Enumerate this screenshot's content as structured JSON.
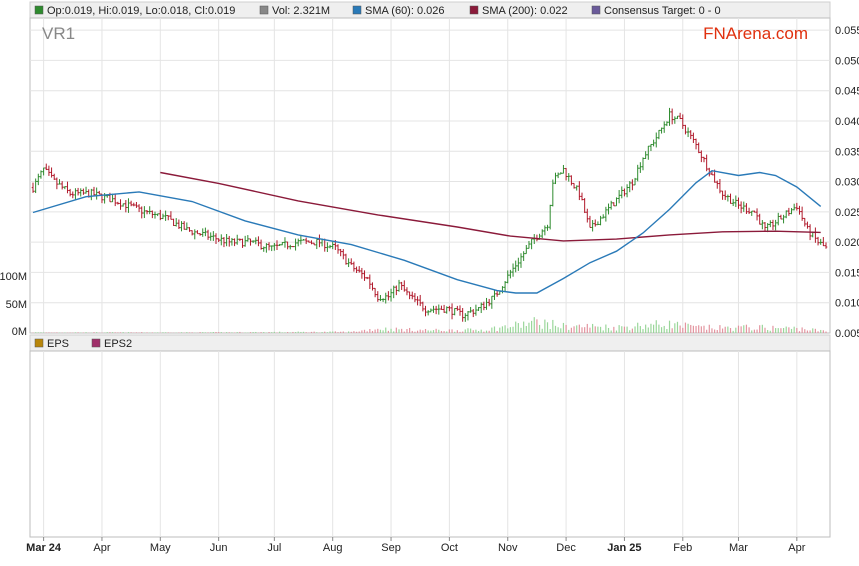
{
  "header": {
    "legend": [
      {
        "label": "Op:0.019, Hi:0.019, Lo:0.018, Cl:0.019",
        "color": "#2e8b2e"
      },
      {
        "label": "Vol: 2.321M",
        "color": "#888888"
      },
      {
        "label": "SMA (60): 0.026",
        "color": "#2a7ab8"
      },
      {
        "label": "SMA (200): 0.022",
        "color": "#8b1a3a"
      },
      {
        "label": "Consensus Target: 0 - 0",
        "color": "#6a5a9a"
      }
    ]
  },
  "ticker": "VR1",
  "brand": {
    "name": "FNArena.com",
    "color": "#e0300e"
  },
  "eps_legend": [
    {
      "label": "EPS",
      "color": "#b8860b"
    },
    {
      "label": "EPS2",
      "color": "#a0306a"
    }
  ],
  "colors": {
    "up": "#2e8b2e",
    "down": "#b0182a",
    "sma60": "#2a7ab8",
    "sma200": "#8b1a3a"
  },
  "chart_data": {
    "type": "candlestick",
    "y_price_ticks": [
      "0.055",
      "0.050",
      "0.045",
      "0.040",
      "0.035",
      "0.030",
      "0.025",
      "0.020",
      "0.015",
      "0.010",
      "0.005"
    ],
    "y_volume_ticks": [
      "100M",
      "50M",
      "0M"
    ],
    "x_ticks": [
      "Mar 24",
      "Apr",
      "May",
      "Jun",
      "Jul",
      "Aug",
      "Sep",
      "Oct",
      "Nov",
      "Dec",
      "Jan 25",
      "Feb",
      "Mar",
      "Apr"
    ],
    "x_tick_index": [
      4,
      26,
      48,
      70,
      91,
      113,
      135,
      157,
      179,
      201,
      223,
      245,
      266,
      288
    ],
    "ylim": [
      0.005,
      0.057
    ],
    "candle_count": 300,
    "price_path": [
      [
        0,
        0.029
      ],
      [
        4,
        0.032
      ],
      [
        8,
        0.03
      ],
      [
        14,
        0.028
      ],
      [
        22,
        0.028
      ],
      [
        30,
        0.027
      ],
      [
        36,
        0.026
      ],
      [
        42,
        0.025
      ],
      [
        50,
        0.024
      ],
      [
        58,
        0.022
      ],
      [
        66,
        0.021
      ],
      [
        74,
        0.02
      ],
      [
        82,
        0.02
      ],
      [
        90,
        0.019
      ],
      [
        100,
        0.02
      ],
      [
        108,
        0.02
      ],
      [
        114,
        0.019
      ],
      [
        120,
        0.016
      ],
      [
        126,
        0.014
      ],
      [
        130,
        0.011
      ],
      [
        134,
        0.011
      ],
      [
        138,
        0.013
      ],
      [
        142,
        0.011
      ],
      [
        148,
        0.009
      ],
      [
        156,
        0.009
      ],
      [
        162,
        0.008
      ],
      [
        168,
        0.009
      ],
      [
        174,
        0.011
      ],
      [
        180,
        0.015
      ],
      [
        188,
        0.02
      ],
      [
        194,
        0.023
      ],
      [
        196,
        0.03
      ],
      [
        200,
        0.032
      ],
      [
        206,
        0.028
      ],
      [
        210,
        0.022
      ],
      [
        214,
        0.024
      ],
      [
        220,
        0.027
      ],
      [
        226,
        0.03
      ],
      [
        230,
        0.034
      ],
      [
        236,
        0.038
      ],
      [
        240,
        0.041
      ],
      [
        244,
        0.04
      ],
      [
        250,
        0.036
      ],
      [
        256,
        0.031
      ],
      [
        260,
        0.028
      ],
      [
        266,
        0.026
      ],
      [
        272,
        0.025
      ],
      [
        276,
        0.022
      ],
      [
        282,
        0.024
      ],
      [
        288,
        0.026
      ],
      [
        292,
        0.022
      ],
      [
        296,
        0.02
      ],
      [
        299,
        0.019
      ]
    ],
    "volume_path": [
      [
        0,
        1
      ],
      [
        60,
        1
      ],
      [
        120,
        2
      ],
      [
        130,
        8
      ],
      [
        140,
        6
      ],
      [
        150,
        5
      ],
      [
        160,
        5
      ],
      [
        170,
        6
      ],
      [
        180,
        12
      ],
      [
        190,
        20
      ],
      [
        200,
        12
      ],
      [
        210,
        12
      ],
      [
        220,
        10
      ],
      [
        230,
        14
      ],
      [
        240,
        16
      ],
      [
        250,
        10
      ],
      [
        260,
        9
      ],
      [
        270,
        10
      ],
      [
        280,
        9
      ],
      [
        290,
        8
      ],
      [
        299,
        3
      ]
    ],
    "sma60_path": [
      [
        0,
        0.0249
      ],
      [
        20,
        0.0275
      ],
      [
        40,
        0.0283
      ],
      [
        60,
        0.0267
      ],
      [
        80,
        0.0235
      ],
      [
        100,
        0.0212
      ],
      [
        120,
        0.0196
      ],
      [
        140,
        0.017
      ],
      [
        160,
        0.0138
      ],
      [
        175,
        0.012
      ],
      [
        182,
        0.0116
      ],
      [
        190,
        0.0116
      ],
      [
        200,
        0.014
      ],
      [
        210,
        0.0166
      ],
      [
        220,
        0.0185
      ],
      [
        230,
        0.0215
      ],
      [
        240,
        0.0254
      ],
      [
        250,
        0.0298
      ],
      [
        256,
        0.0318
      ],
      [
        266,
        0.031
      ],
      [
        274,
        0.0315
      ],
      [
        280,
        0.031
      ],
      [
        288,
        0.0291
      ],
      [
        297,
        0.0259
      ]
    ],
    "sma200_path": [
      [
        48,
        0.0315
      ],
      [
        70,
        0.0297
      ],
      [
        100,
        0.0268
      ],
      [
        130,
        0.0245
      ],
      [
        160,
        0.0225
      ],
      [
        180,
        0.021
      ],
      [
        200,
        0.0202
      ],
      [
        220,
        0.0205
      ],
      [
        240,
        0.0212
      ],
      [
        260,
        0.0217
      ],
      [
        280,
        0.0218
      ],
      [
        297,
        0.0216
      ]
    ]
  }
}
